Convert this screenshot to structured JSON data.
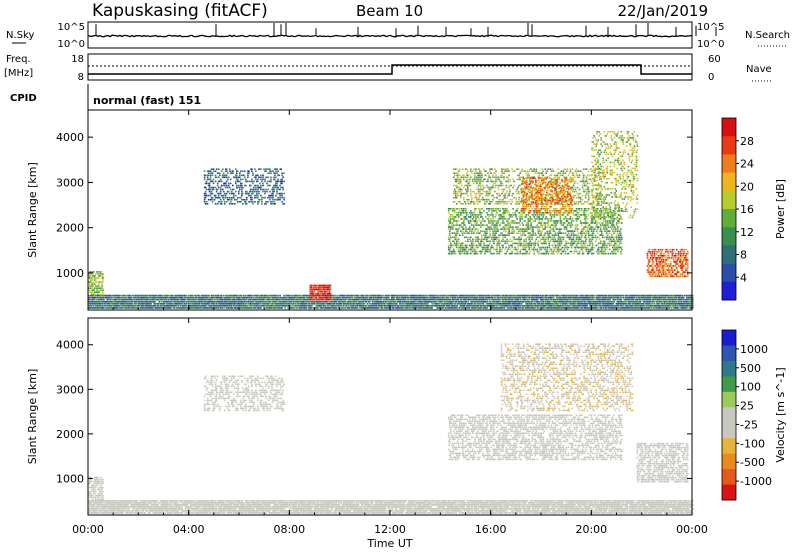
{
  "header": {
    "station": "Kapuskasing (fitACF)",
    "beam": "Beam 10",
    "date": "22/Jan/2019"
  },
  "strips": {
    "nsky_label": "N.Sky",
    "nsky_ticks": [
      "10^5",
      "10^0"
    ],
    "nsearch_label": "N.Search",
    "freq_label_1": "Freq.",
    "freq_label_2": "[MHz]",
    "freq_ticks": [
      "18",
      "8"
    ],
    "nave_label": "Nave",
    "nave_ticks": [
      "60",
      "0"
    ],
    "cpid_label": "CPID",
    "cpid_value": "normal (fast) 151"
  },
  "colors": {
    "power_scale": [
      "#1f1fd6",
      "#2b4ea8",
      "#2f6f78",
      "#3b8f4e",
      "#5fae3c",
      "#b9cc2e",
      "#f0b41e",
      "#ef7d1c",
      "#e83a14",
      "#d60f0f"
    ],
    "velocity_scale": [
      "#1a1ad1",
      "#2c56b0",
      "#2e7a8c",
      "#3f9a4a",
      "#9acb5b",
      "#c8c8c0",
      "#c8c8c0",
      "#e6b43a",
      "#e88a20",
      "#e5591b",
      "#d81414"
    ]
  },
  "chart_data": [
    {
      "type": "heatmap",
      "name": "power",
      "ylabel": "Slant Range [km]",
      "yticks": [
        1000,
        2000,
        3000,
        4000
      ],
      "ylim": [
        180,
        4600
      ],
      "xlabel": "Time UT",
      "xticks": [
        "00:00",
        "04:00",
        "08:00",
        "12:00",
        "16:00",
        "20:00",
        "00:00"
      ],
      "xlim_hours": [
        0,
        24
      ],
      "colorbar": {
        "label": "Power [dB]",
        "ticks": [
          "28",
          "24",
          "20",
          "16",
          "12",
          "8",
          "4"
        ],
        "range": [
          0,
          30
        ]
      },
      "regions": [
        {
          "t0": 0.0,
          "t1": 24.0,
          "r0": 200,
          "r1": 480,
          "value": 8,
          "density": 0.9
        },
        {
          "t0": 0.0,
          "t1": 0.6,
          "r0": 500,
          "r1": 1000,
          "value": 14,
          "density": 0.6
        },
        {
          "t0": 4.6,
          "t1": 7.8,
          "r0": 2500,
          "r1": 3300,
          "value": 7,
          "density": 0.35
        },
        {
          "t0": 8.8,
          "t1": 9.6,
          "r0": 380,
          "r1": 700,
          "value": 27,
          "density": 0.9
        },
        {
          "t0": 14.3,
          "t1": 21.2,
          "r0": 1400,
          "r1": 2400,
          "value": 13,
          "density": 0.45
        },
        {
          "t0": 14.5,
          "t1": 20.4,
          "r0": 2500,
          "r1": 3300,
          "value": 15,
          "density": 0.35
        },
        {
          "t0": 17.2,
          "t1": 19.2,
          "r0": 2300,
          "r1": 3100,
          "value": 22,
          "density": 0.4
        },
        {
          "t0": 20.0,
          "t1": 21.8,
          "r0": 2200,
          "r1": 4100,
          "value": 16,
          "density": 0.25
        },
        {
          "t0": 22.2,
          "t1": 23.8,
          "r0": 900,
          "r1": 1500,
          "value": 24,
          "density": 0.6
        }
      ]
    },
    {
      "type": "heatmap",
      "name": "velocity",
      "ylabel": "Slant Range [km]",
      "yticks": [
        1000,
        2000,
        3000,
        4000
      ],
      "ylim": [
        180,
        4600
      ],
      "xlabel": "Time UT",
      "xticks": [
        "00:00",
        "04:00",
        "08:00",
        "12:00",
        "16:00",
        "20:00",
        "00:00"
      ],
      "xlim_hours": [
        0,
        24
      ],
      "colorbar": {
        "label": "Velocity [m s^-1]",
        "ticks": [
          "1000",
          "500",
          "100",
          "25",
          "-25",
          "-100",
          "-500",
          "-1000"
        ],
        "range": [
          -1200,
          1200
        ]
      },
      "regions": [
        {
          "t0": 0.0,
          "t1": 24.0,
          "r0": 200,
          "r1": 480,
          "value": 60,
          "density": 0.85
        },
        {
          "t0": 0.0,
          "t1": 0.6,
          "r0": 500,
          "r1": 1000,
          "value": 0,
          "density": 0.6
        },
        {
          "t0": 4.6,
          "t1": 7.8,
          "r0": 2500,
          "r1": 3300,
          "value": 0,
          "density": 0.35
        },
        {
          "t0": 14.3,
          "t1": 21.2,
          "r0": 1400,
          "r1": 2400,
          "value": 0,
          "density": 0.45
        },
        {
          "t0": 16.4,
          "t1": 21.6,
          "r0": 2500,
          "r1": 4000,
          "value": -300,
          "density": 0.3
        },
        {
          "t0": 21.8,
          "t1": 23.8,
          "r0": 900,
          "r1": 1800,
          "value": -120,
          "density": 0.5
        }
      ]
    }
  ]
}
